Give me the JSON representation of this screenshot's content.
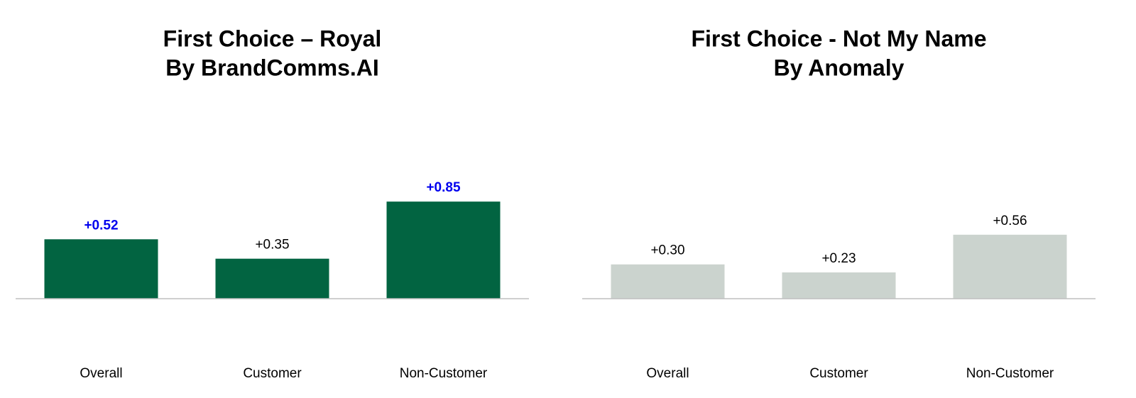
{
  "chart_data": [
    {
      "type": "bar",
      "title": "First Choice – Royal",
      "subtitle": "By BrandComms.AI",
      "categories": [
        "Overall",
        "Customer",
        "Non-Customer"
      ],
      "values": [
        0.52,
        0.35,
        0.85
      ],
      "value_labels": [
        "+0.52",
        "+0.35",
        "+0.85"
      ],
      "value_label_colors": [
        "#0000ee",
        "#000000",
        "#0000ee"
      ],
      "value_label_bold": [
        true,
        false,
        true
      ],
      "color": "#026441",
      "ylim": [
        0,
        1
      ]
    },
    {
      "type": "bar",
      "title": "First Choice - Not My Name",
      "subtitle": "By Anomaly",
      "categories": [
        "Overall",
        "Customer",
        "Non-Customer"
      ],
      "values": [
        0.3,
        0.23,
        0.56
      ],
      "value_labels": [
        "+0.30",
        "+0.23",
        "+0.56"
      ],
      "value_label_colors": [
        "#000000",
        "#000000",
        "#000000"
      ],
      "value_label_bold": [
        false,
        false,
        false
      ],
      "color": "#cbd3ce",
      "ylim": [
        0,
        1
      ]
    }
  ]
}
